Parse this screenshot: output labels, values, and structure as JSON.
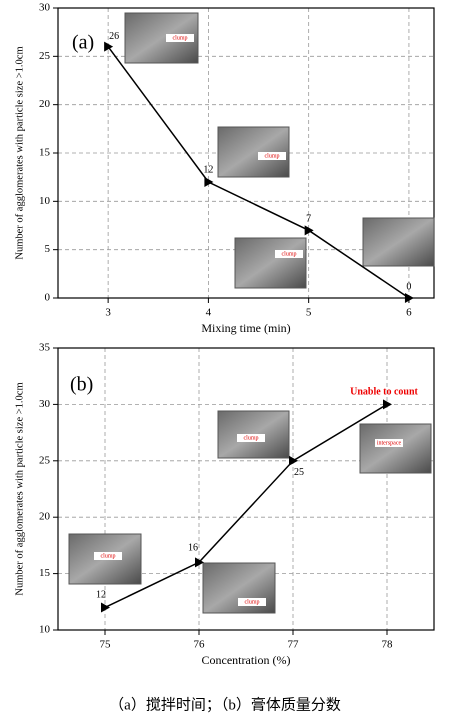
{
  "chart_data": [
    {
      "type": "line",
      "panel_label": "(a)",
      "x_label": "Mixing time (min)",
      "y_label": "Number of agglomerates with particle size >1.0cm",
      "x": [
        3,
        4,
        5,
        6
      ],
      "values": [
        26,
        12,
        7,
        0
      ],
      "color": "#000000",
      "xlim": [
        2.5,
        6.25
      ],
      "xticks": [
        3,
        4,
        5,
        6
      ],
      "ylim": [
        0,
        30
      ],
      "yticks": [
        0,
        5,
        10,
        15,
        20,
        25,
        30
      ],
      "grid": true,
      "annotations": [
        "clump",
        "clump",
        "clump"
      ]
    },
    {
      "type": "line",
      "panel_label": "(b)",
      "x_label": "Concentration (%)",
      "y_label": "Number of agglomerates with particle size >1.0cm",
      "x": [
        75,
        76,
        77,
        78
      ],
      "values": [
        12,
        16,
        25,
        30
      ],
      "value_labels": [
        "12",
        "16",
        "25",
        null
      ],
      "color": "#000000",
      "xlim": [
        74.5,
        78.5
      ],
      "xticks": [
        75,
        76,
        77,
        78
      ],
      "ylim": [
        10,
        35
      ],
      "yticks": [
        10,
        15,
        20,
        25,
        30,
        35
      ],
      "grid": true,
      "annotations": [
        "clump",
        "clump",
        "interspace",
        "clump",
        "Unable to count"
      ]
    }
  ],
  "caption": "（a）搅拌时间；（b）膏体质量分数"
}
